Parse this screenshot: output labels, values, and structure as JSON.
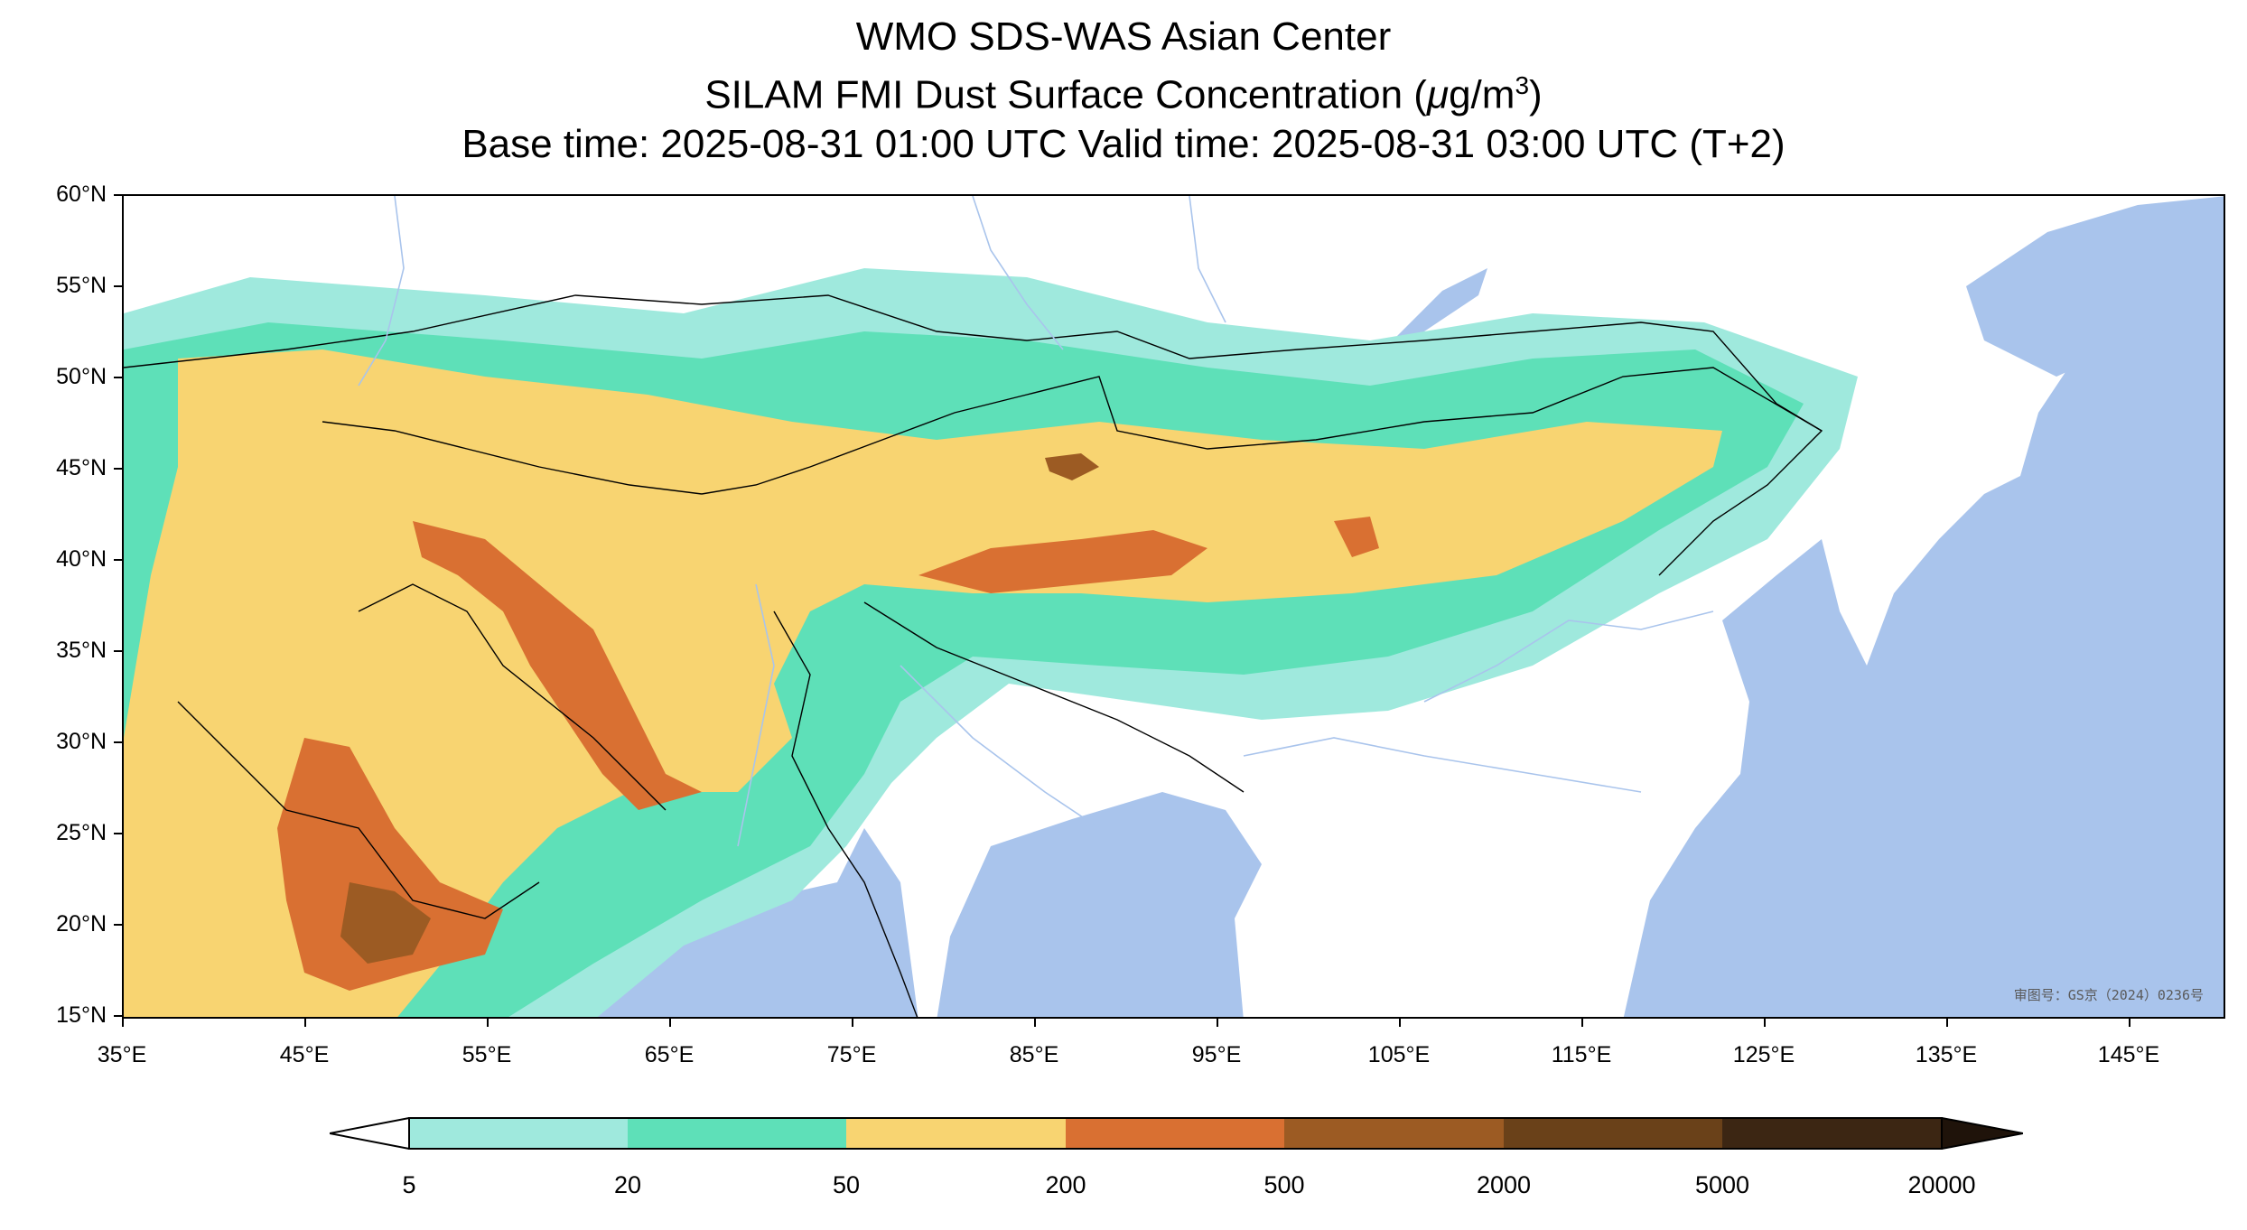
{
  "title": {
    "line1": "WMO SDS-WAS Asian Center",
    "line2_prefix": "SILAM FMI Dust Surface Concentration (",
    "line2_mu": "μ",
    "line2_unit": "g/m",
    "line2_exp": "3",
    "line2_suffix": ")",
    "line3": "Base time: 2025-08-31 01:00 UTC Valid time: 2025-08-31 03:00 UTC (T+2)"
  },
  "map": {
    "lat_labels": [
      "60°N",
      "55°N",
      "50°N",
      "45°N",
      "40°N",
      "35°N",
      "30°N",
      "25°N",
      "20°N",
      "15°N"
    ],
    "lon_labels": [
      "35°E",
      "45°E",
      "55°E",
      "65°E",
      "75°E",
      "85°E",
      "95°E",
      "105°E",
      "115°E",
      "125°E",
      "135°E",
      "145°E"
    ],
    "lat_range": [
      15,
      60
    ],
    "lon_range": [
      35,
      150
    ],
    "approval_number": "审图号：GS京（2024）0236号",
    "ocean_color": "#a9c4ec",
    "river_color": "#a9c4ec"
  },
  "colorbar": {
    "labels": [
      "5",
      "20",
      "50",
      "200",
      "500",
      "2000",
      "5000",
      "20000"
    ],
    "colors": [
      "#9fe9dd",
      "#5ee0b8",
      "#f8d471",
      "#d97032",
      "#9c5b23",
      "#6a4119",
      "#3c2613"
    ],
    "under_color": "#ffffff",
    "over_color": "#1f130a"
  }
}
